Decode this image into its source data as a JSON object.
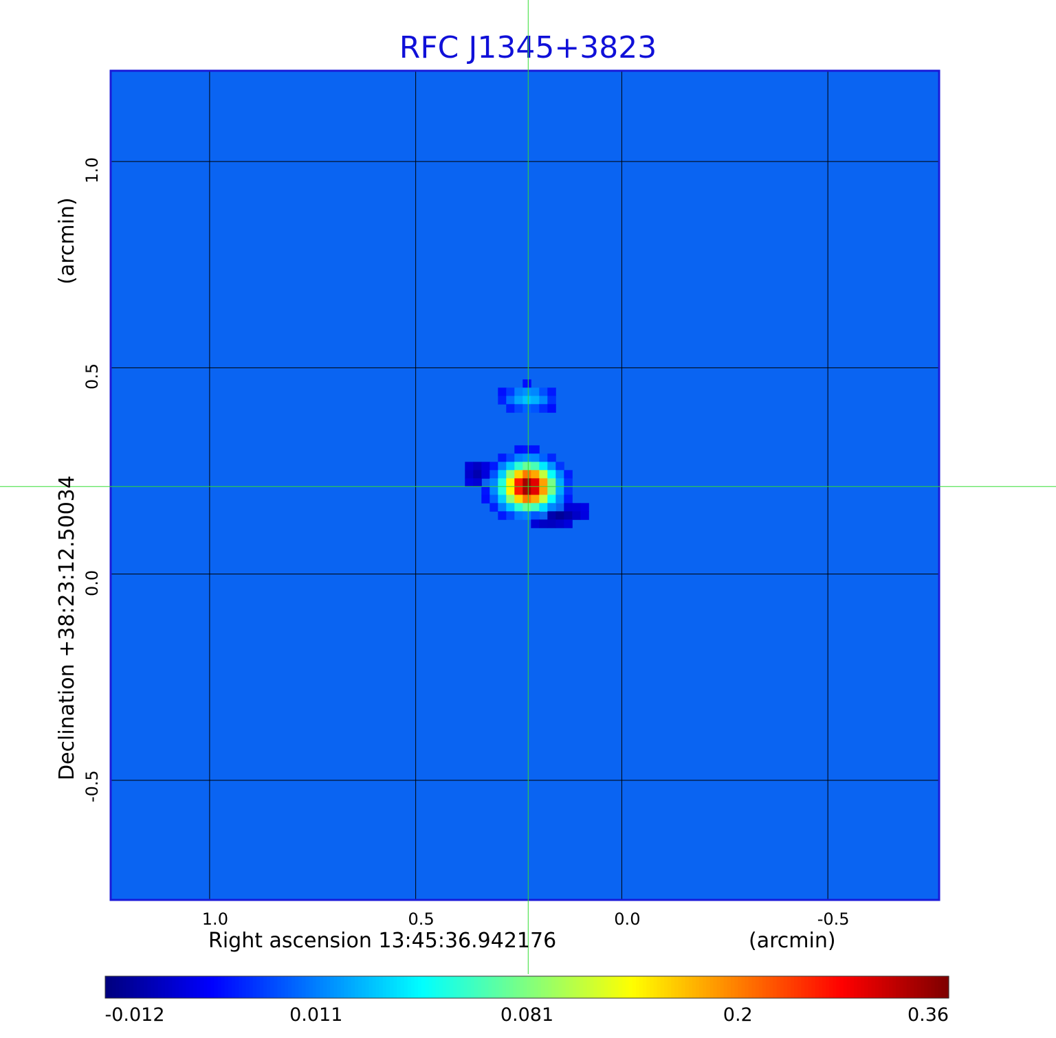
{
  "chart_data": {
    "type": "heatmap",
    "title": "RFC J1345+3823",
    "xlabel": "Right ascension  13:45:36.942176",
    "xlabel_unit": "(arcmin)",
    "ylabel": "Declination  +38:23:12.50034",
    "ylabel_unit": "(arcmin)",
    "x_ticks": [
      "1.0",
      "0.5",
      "0.0",
      "-0.5"
    ],
    "x_tick_values": [
      1.0,
      0.5,
      0.0,
      -0.5
    ],
    "y_ticks": [
      "1.0",
      "0.5",
      "0.0",
      "-0.5"
    ],
    "y_tick_values": [
      1.0,
      0.5,
      0.0,
      -0.5
    ],
    "xlim": [
      1.24,
      -0.77
    ],
    "ylim": [
      -0.79,
      1.22
    ],
    "grid": true,
    "crosshair": {
      "x": 0.227,
      "y": 0.212,
      "color": "#33dd33"
    },
    "colormap": "jet",
    "colorbar": {
      "ticks": [
        "-0.012",
        "0.011",
        "0.081",
        "0.2",
        "0.36"
      ],
      "tick_values": [
        -0.012,
        0.011,
        0.081,
        0.2,
        0.36
      ],
      "placement": "bottom"
    },
    "peak": {
      "x": 0.227,
      "y": 0.212,
      "value": 0.36
    },
    "features": [
      {
        "name": "peak",
        "x": 0.227,
        "y": 0.212,
        "value": 0.36
      },
      {
        "name": "secondary-component",
        "x": 0.227,
        "y": 0.425,
        "value": 0.03
      },
      {
        "name": "negative-sidelobe",
        "x": 0.17,
        "y": 0.14,
        "value": -0.012
      },
      {
        "name": "negative-sidelobe-west",
        "x": 0.35,
        "y": 0.245,
        "value": -0.008
      }
    ],
    "background_value": -0.001
  },
  "colors": {
    "title": "#1010d8",
    "frame": "#1a1ad8",
    "grid": "#000000",
    "crosshair": "#33dd33",
    "background": "#0a64f2"
  }
}
